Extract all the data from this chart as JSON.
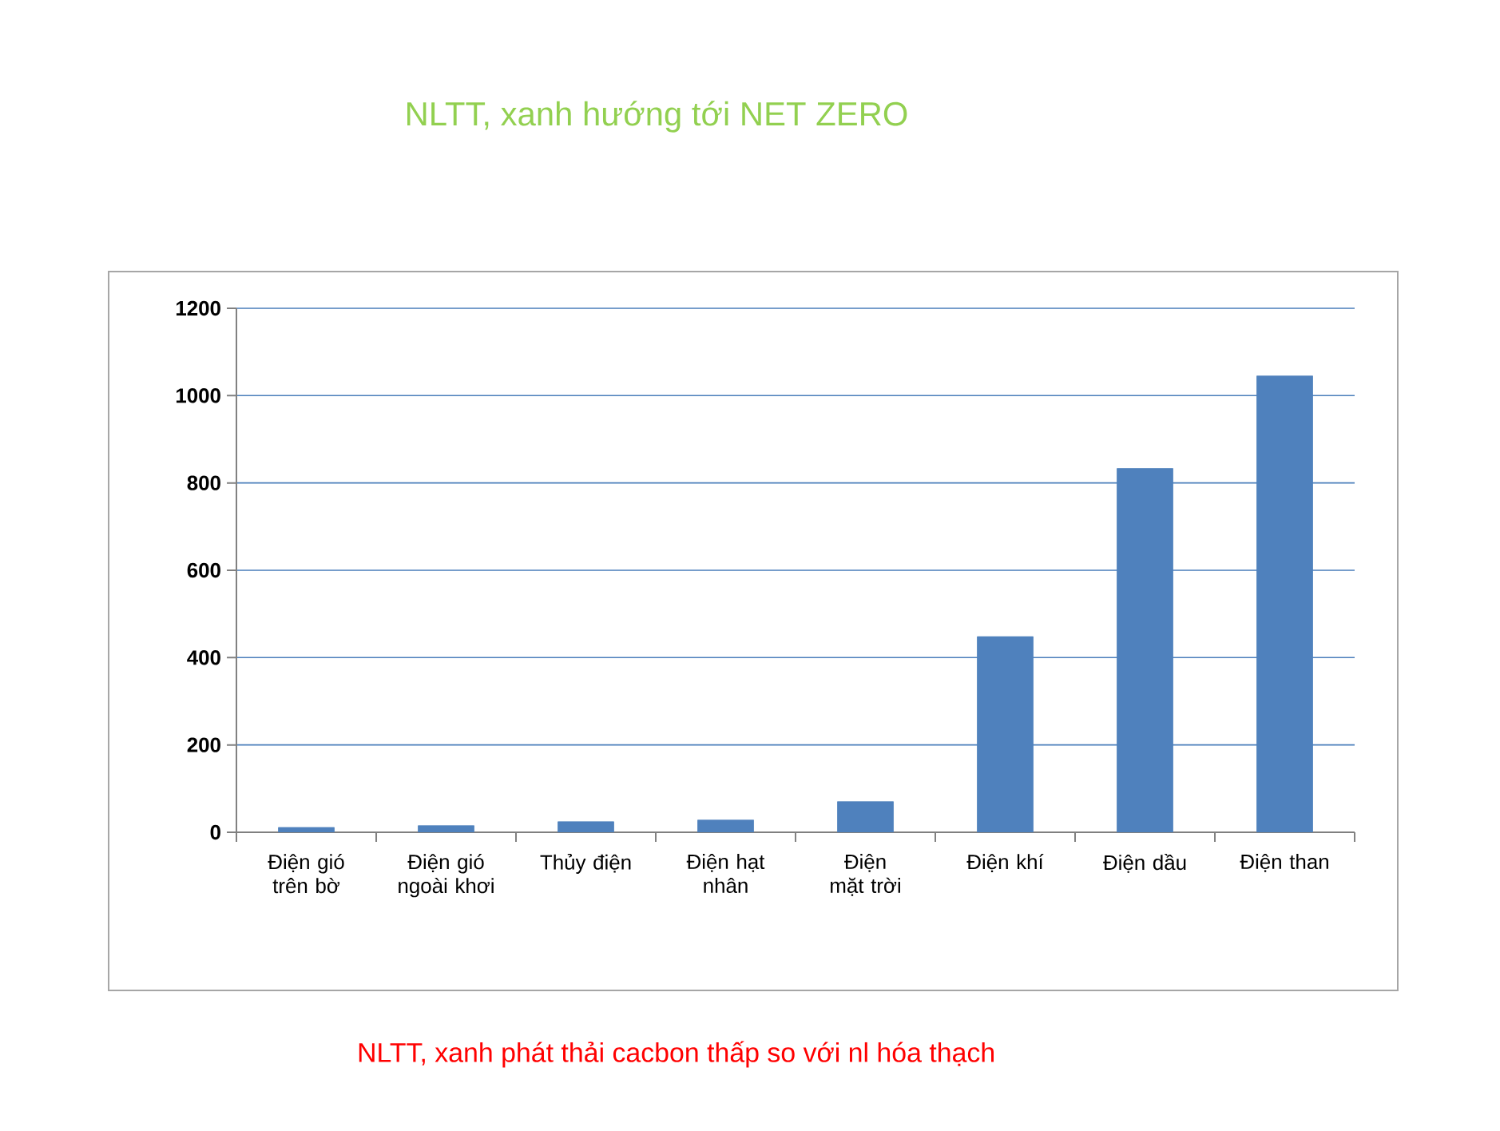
{
  "chart_data": {
    "type": "bar",
    "title": "NLTT, xanh hướng tới NET ZERO",
    "categories": [
      "Điện gió trên bờ",
      "Điện gió ngoài khơi",
      "Thủy điện",
      "Điện hạt nhân",
      "Điện mặt trời",
      "Điện khí",
      "Điện dầu",
      "Điện than"
    ],
    "values": [
      11,
      15,
      24,
      28,
      70,
      448,
      833,
      1045
    ],
    "color": "#4f81bd",
    "ylim": [
      0,
      1200
    ],
    "yticks": [
      0,
      200,
      400,
      600,
      800,
      1000,
      1200
    ],
    "grid": "y",
    "annotations": [
      "NLTT, xanh phát thải cacbon thấp so với nl hóa thạch"
    ]
  }
}
